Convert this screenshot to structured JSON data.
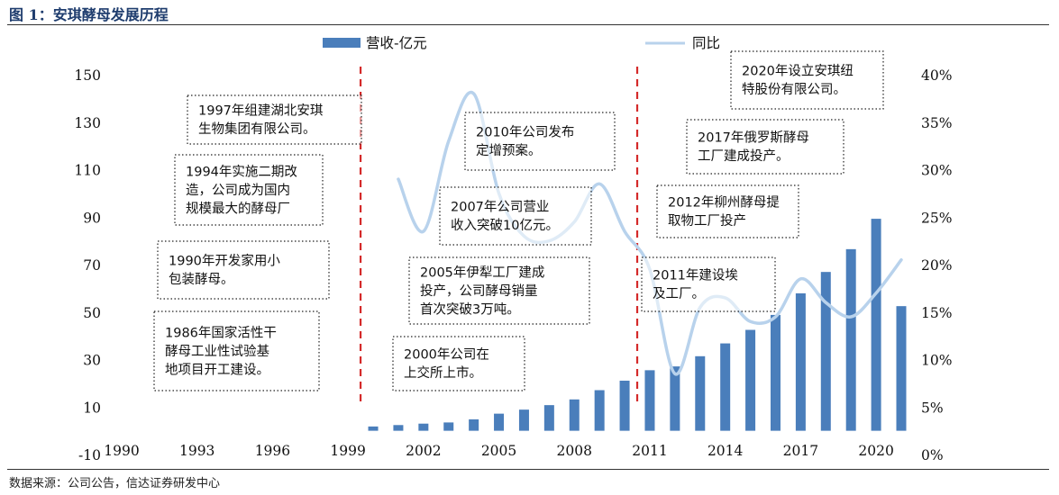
{
  "header": {
    "title": "图 1：安琪酵母发展历程"
  },
  "footer": {
    "source": "数据来源：公司公告，信达证券研发中心"
  },
  "chart_data": {
    "type": "bar",
    "legend": {
      "bar": "营收-亿元",
      "line": "同比",
      "placement": "top"
    },
    "x_ticks": [
      "1990",
      "1993",
      "1996",
      "1999",
      "2002",
      "2005",
      "2008",
      "2011",
      "2014",
      "2017",
      "2020"
    ],
    "y_left": {
      "ticks": [
        "-10",
        "10",
        "30",
        "50",
        "70",
        "90",
        "110",
        "130",
        "150"
      ],
      "range": [
        -10,
        150
      ]
    },
    "y_right": {
      "ticks": [
        "0%",
        "5%",
        "10%",
        "15%",
        "20%",
        "25%",
        "30%",
        "35%",
        "40%"
      ],
      "range": [
        0,
        0.4
      ]
    },
    "x_range": [
      1990,
      2021
    ],
    "bar_series": {
      "name": "营收-亿元",
      "x": [
        2000,
        2001,
        2002,
        2003,
        2004,
        2005,
        2006,
        2007,
        2008,
        2009,
        2010,
        2011,
        2012,
        2013,
        2014,
        2015,
        2016,
        2017,
        2018,
        2019,
        2020,
        2021
      ],
      "values": [
        1.8,
        2.4,
        3.0,
        3.5,
        4.8,
        7.2,
        8.9,
        10.8,
        13.2,
        17.1,
        21.1,
        25.5,
        27.1,
        31.4,
        36.8,
        42.5,
        48.8,
        57.9,
        66.9,
        76.5,
        89.3,
        52.5
      ]
    },
    "line_series": {
      "name": "同比",
      "x": [
        2001,
        2002,
        2003,
        2004,
        2005,
        2006,
        2007,
        2008,
        2009,
        2010,
        2011,
        2012,
        2013,
        2014,
        2015,
        2016,
        2017,
        2018,
        2019,
        2020,
        2021
      ],
      "values": [
        0.29,
        0.235,
        0.33,
        0.38,
        0.275,
        0.23,
        0.225,
        0.245,
        0.285,
        0.235,
        0.195,
        0.085,
        0.155,
        0.165,
        0.14,
        0.145,
        0.185,
        0.16,
        0.145,
        0.17,
        0.205
      ]
    },
    "dividers": [
      1999.5,
      2010.5
    ],
    "annotations": [
      {
        "lines": [
          "1986年国家活性干",
          "酵母工业性试验基",
          "地项目开工建设。"
        ]
      },
      {
        "lines": [
          "1990年开发家用小",
          "包装酵母。"
        ]
      },
      {
        "lines": [
          "1994年实施二期改",
          "造，公司成为国内",
          "规模最大的酵母厂"
        ]
      },
      {
        "lines": [
          "1997年组建湖北安琪",
          "生物集团有限公司。"
        ]
      },
      {
        "lines": [
          "2000年公司在",
          "上交所上市。"
        ]
      },
      {
        "lines": [
          "2005年伊犁工厂建成",
          "投产，公司酵母销量",
          "首次突破3万吨。"
        ]
      },
      {
        "lines": [
          "2007年公司营业",
          "收入突破10亿元。"
        ]
      },
      {
        "lines": [
          "2010年公司发布",
          "定增预案。"
        ]
      },
      {
        "lines": [
          "2011年建设埃",
          "及工厂。"
        ]
      },
      {
        "lines": [
          "2012年柳州酵母提",
          "取物工厂投产"
        ]
      },
      {
        "lines": [
          "2017年俄罗斯酵母",
          "工厂建成投产。"
        ]
      },
      {
        "lines": [
          "2020年设立安琪纽",
          "特股份有限公司。"
        ]
      }
    ],
    "colors": {
      "bar": "#4a7ebb",
      "line": "#b8d2ec",
      "divider": "#d42a2a"
    }
  }
}
